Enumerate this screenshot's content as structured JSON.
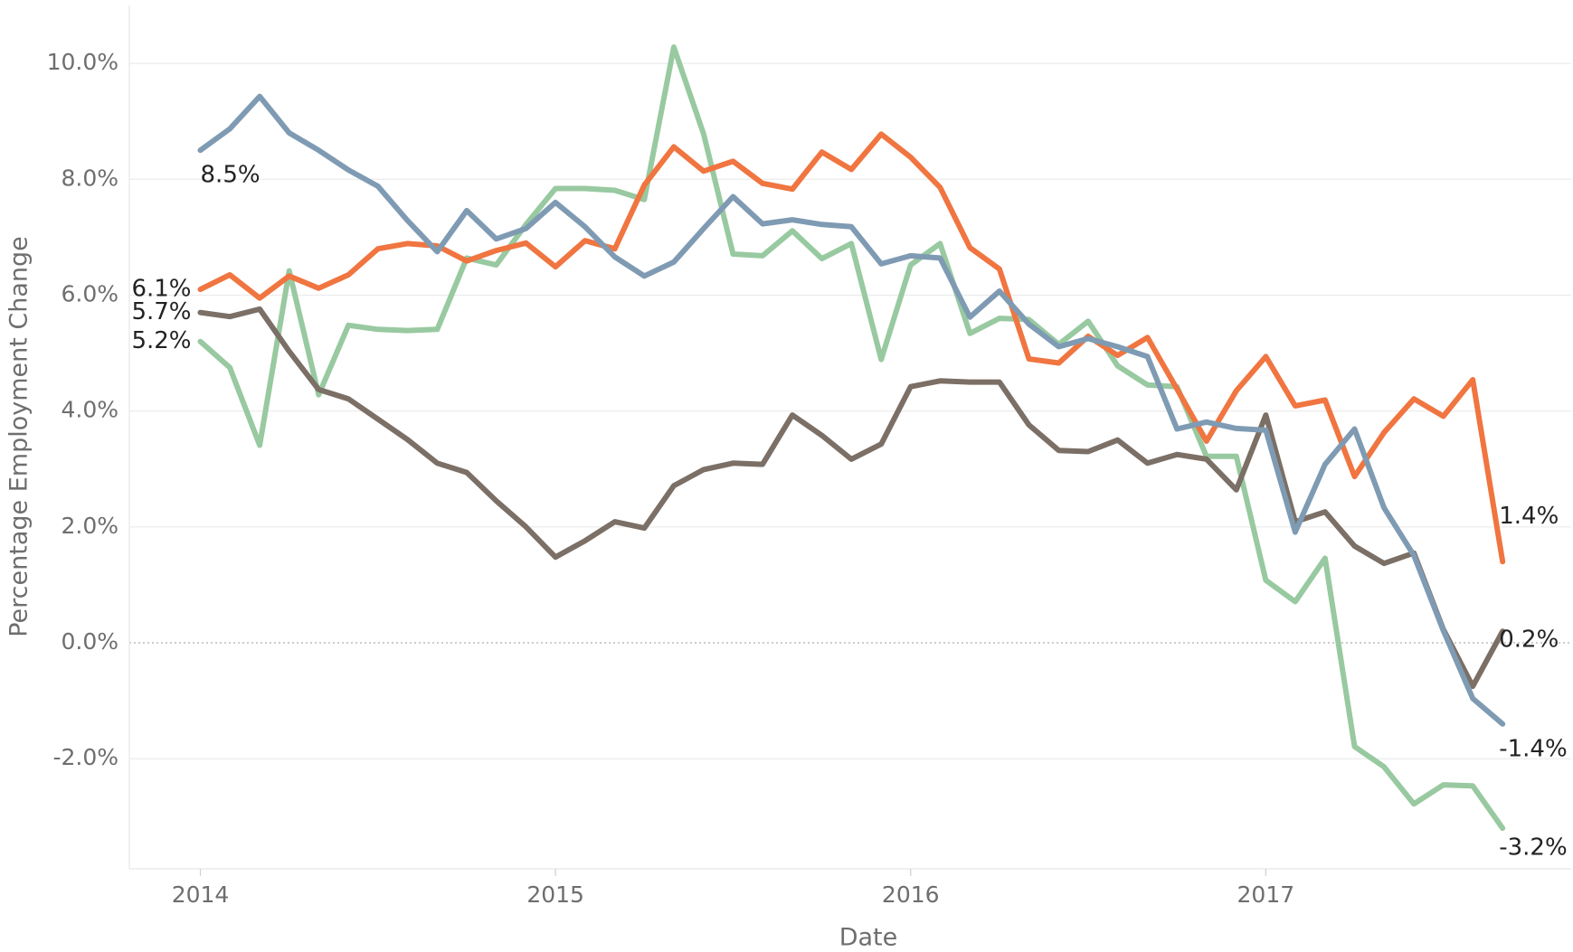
{
  "chart_data": {
    "type": "line",
    "x_label": "Date",
    "y_label": "Percentage Employment Change",
    "x": [
      2014,
      2014.083,
      2014.167,
      2014.25,
      2014.333,
      2014.417,
      2014.5,
      2014.583,
      2014.667,
      2014.75,
      2014.833,
      2014.917,
      2015,
      2015.083,
      2015.167,
      2015.25,
      2015.333,
      2015.417,
      2015.5,
      2015.583,
      2015.667,
      2015.75,
      2015.833,
      2015.917,
      2016,
      2016.083,
      2016.167,
      2016.25,
      2016.333,
      2016.417,
      2016.5,
      2016.583,
      2016.667,
      2016.75,
      2016.833,
      2016.917,
      2017,
      2017.083,
      2017.167,
      2017.25,
      2017.333,
      2017.417,
      2017.5,
      2017.583,
      2017.667
    ],
    "xlim": [
      2013.8,
      2017.86
    ],
    "xticks": [
      2014,
      2015,
      2016,
      2017
    ],
    "ylim": [
      -3.9,
      11.0
    ],
    "yticks": [
      {
        "value": -2,
        "label": "-2.0%"
      },
      {
        "value": 0,
        "label": "0.0%"
      },
      {
        "value": 2,
        "label": "2.0%"
      },
      {
        "value": 4,
        "label": "4.0%"
      },
      {
        "value": 6,
        "label": "6.0%"
      },
      {
        "value": 8,
        "label": "8.0%"
      },
      {
        "value": 10,
        "label": "10.0%"
      }
    ],
    "grid": true,
    "series": [
      {
        "color": "#98c9a0",
        "values": [
          5.2,
          4.75,
          3.41,
          6.42,
          4.28,
          5.48,
          5.41,
          5.39,
          5.41,
          6.64,
          6.52,
          7.22,
          7.84,
          7.84,
          7.81,
          7.65,
          10.28,
          8.78,
          6.71,
          6.68,
          7.11,
          6.63,
          6.89,
          4.89,
          6.52,
          6.89,
          5.34,
          5.6,
          5.58,
          5.15,
          5.55,
          4.78,
          4.45,
          4.42,
          3.22,
          3.22,
          1.08,
          0.71,
          1.46,
          -1.79,
          -2.14,
          -2.78,
          -2.45,
          -2.47,
          -3.2
        ],
        "value_labels": [
          "5.2%",
          null,
          null,
          null,
          null,
          null,
          null,
          null,
          null,
          null,
          null,
          null,
          null,
          null,
          null,
          null,
          null,
          null,
          null,
          null,
          null,
          null,
          null,
          null,
          null,
          null,
          null,
          null,
          null,
          null,
          null,
          null,
          null,
          null,
          null,
          null,
          null,
          null,
          null,
          null,
          null,
          null,
          null,
          null,
          "-3.2%"
        ]
      },
      {
        "color": "#7b6f66",
        "values": [
          5.7,
          5.63,
          5.76,
          5.03,
          4.37,
          4.21,
          3.86,
          3.51,
          3.1,
          2.94,
          2.45,
          2.0,
          1.48,
          1.76,
          2.09,
          1.98,
          2.71,
          2.99,
          3.1,
          3.08,
          3.93,
          3.58,
          3.17,
          3.43,
          4.42,
          4.52,
          4.5,
          4.5,
          3.76,
          3.32,
          3.3,
          3.5,
          3.1,
          3.25,
          3.17,
          2.64,
          3.93,
          2.09,
          2.26,
          1.67,
          1.37,
          1.55,
          0.23,
          -0.75,
          0.2
        ],
        "value_labels": [
          "5.7%",
          null,
          null,
          null,
          null,
          null,
          null,
          null,
          null,
          null,
          null,
          null,
          null,
          null,
          null,
          null,
          null,
          null,
          null,
          null,
          null,
          null,
          null,
          null,
          null,
          null,
          null,
          null,
          null,
          null,
          null,
          null,
          null,
          null,
          null,
          null,
          null,
          null,
          null,
          null,
          null,
          null,
          null,
          null,
          "0.2%"
        ]
      },
      {
        "color": "#f07540",
        "values": [
          6.1,
          6.35,
          5.95,
          6.33,
          6.12,
          6.35,
          6.8,
          6.89,
          6.85,
          6.59,
          6.77,
          6.9,
          6.49,
          6.94,
          6.8,
          7.9,
          8.56,
          8.14,
          8.31,
          7.93,
          7.83,
          8.47,
          8.17,
          8.78,
          8.38,
          7.86,
          6.82,
          6.45,
          4.9,
          4.83,
          5.29,
          4.96,
          5.27,
          4.38,
          3.48,
          4.35,
          4.94,
          4.09,
          4.19,
          2.87,
          3.63,
          4.21,
          3.91,
          4.54,
          1.4
        ],
        "value_labels": [
          "6.1%",
          null,
          null,
          null,
          null,
          null,
          null,
          null,
          null,
          null,
          null,
          null,
          null,
          null,
          null,
          null,
          null,
          null,
          null,
          null,
          null,
          null,
          null,
          null,
          null,
          null,
          null,
          null,
          null,
          null,
          null,
          null,
          null,
          null,
          null,
          null,
          null,
          null,
          null,
          null,
          null,
          null,
          null,
          null,
          "1.4%"
        ]
      },
      {
        "color": "#7f9bb3",
        "values": [
          8.5,
          8.87,
          9.43,
          8.8,
          8.5,
          8.16,
          7.88,
          7.29,
          6.75,
          7.46,
          6.97,
          7.15,
          7.6,
          7.18,
          6.66,
          6.33,
          6.57,
          7.15,
          7.7,
          7.23,
          7.3,
          7.22,
          7.18,
          6.54,
          6.68,
          6.64,
          5.62,
          6.07,
          5.5,
          5.11,
          5.25,
          5.11,
          4.94,
          3.69,
          3.81,
          3.7,
          3.67,
          1.91,
          3.08,
          3.69,
          2.33,
          1.51,
          0.21,
          -0.96,
          -1.4
        ],
        "value_labels": [
          "8.5%",
          null,
          null,
          null,
          null,
          null,
          null,
          null,
          null,
          null,
          null,
          null,
          null,
          null,
          null,
          null,
          null,
          null,
          null,
          null,
          null,
          null,
          null,
          null,
          null,
          null,
          null,
          null,
          null,
          null,
          null,
          null,
          null,
          null,
          null,
          null,
          null,
          null,
          null,
          null,
          null,
          null,
          null,
          null,
          "-1.4%"
        ]
      }
    ]
  }
}
